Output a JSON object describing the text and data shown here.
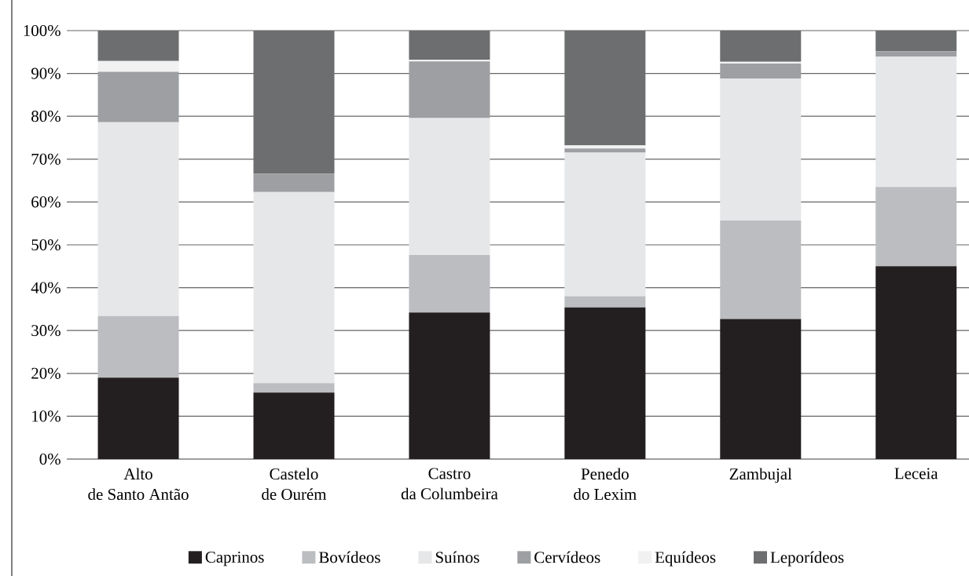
{
  "chart_data": {
    "type": "bar",
    "stacked": true,
    "categories": [
      "Alto\nde Santo Antão",
      "Castelo\nde Ourém",
      "Castro\nda Columbeira",
      "Penedo\ndo Lexim",
      "Zambujal",
      "Leceia"
    ],
    "series": [
      {
        "name": "Caprinos",
        "color": "#231f20",
        "values": [
          19.0,
          15.5,
          34.2,
          35.4,
          32.7,
          45.0
        ]
      },
      {
        "name": "Bovídeos",
        "color": "#bcbdc0",
        "values": [
          14.4,
          2.2,
          13.4,
          2.6,
          23.0,
          18.5
        ]
      },
      {
        "name": "Suínos",
        "color": "#e6e7e8",
        "values": [
          45.2,
          44.6,
          32.0,
          33.5,
          33.1,
          30.4
        ]
      },
      {
        "name": "Cervídeos",
        "color": "#9d9fa2",
        "values": [
          11.8,
          4.3,
          13.2,
          1.0,
          3.5,
          1.3
        ]
      },
      {
        "name": "Equídeos",
        "color": "#f1f1f1",
        "values": [
          2.5,
          0,
          0.4,
          0.7,
          0.4,
          0
        ]
      },
      {
        "name": "Leporídeos",
        "color": "#6d6e70",
        "values": [
          7.1,
          33.4,
          6.8,
          26.8,
          7.3,
          4.8
        ]
      }
    ],
    "ylim": [
      0,
      100
    ],
    "yticks": [
      {
        "value": 0,
        "label": "0%"
      },
      {
        "value": 10,
        "label": "10%"
      },
      {
        "value": 20,
        "label": "20%"
      },
      {
        "value": 30,
        "label": "30%"
      },
      {
        "value": 40,
        "label": "40%"
      },
      {
        "value": 50,
        "label": "50%"
      },
      {
        "value": 60,
        "label": "60%"
      },
      {
        "value": 70,
        "label": "70%"
      },
      {
        "value": 80,
        "label": "80%"
      },
      {
        "value": 90,
        "label": "90%"
      },
      {
        "value": 100,
        "label": "100%"
      }
    ],
    "grid": "y",
    "legend": "bottom"
  }
}
